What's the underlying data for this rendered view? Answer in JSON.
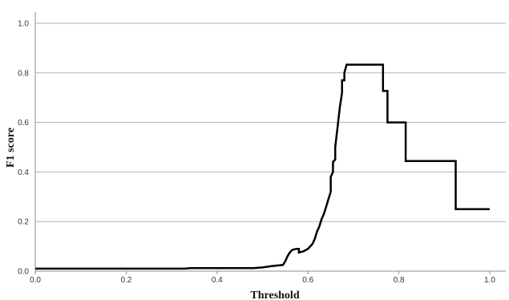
{
  "chart_data": {
    "type": "line",
    "title": "",
    "xlabel": "Threshold",
    "ylabel": "F1 score",
    "xlim": [
      0,
      1
    ],
    "ylim": [
      0,
      1
    ],
    "x_ticks": [
      "0.0",
      "0.2",
      "0.4",
      "0.6",
      "0.8",
      "1.0"
    ],
    "y_ticks": [
      "0.0",
      "0.2",
      "0.4",
      "0.6",
      "0.8",
      "1.0"
    ],
    "grid": "horizontal",
    "legend": "none",
    "line_color": "#000000",
    "series": [
      {
        "x": [
          0.0,
          0.33,
          0.34,
          0.48,
          0.5,
          0.52,
          0.545,
          0.55,
          0.555,
          0.56,
          0.565,
          0.57,
          0.575,
          0.58,
          0.58,
          0.59,
          0.6,
          0.605,
          0.61,
          0.615,
          0.62,
          0.625,
          0.63,
          0.635,
          0.64,
          0.645,
          0.65,
          0.65,
          0.655,
          0.655,
          0.66,
          0.66,
          0.665,
          0.67,
          0.675,
          0.675,
          0.68,
          0.68,
          0.685,
          0.72,
          0.765,
          0.765,
          0.775,
          0.775,
          0.795,
          0.815,
          0.815,
          0.92,
          0.925,
          0.925,
          1.0
        ],
        "y": [
          0.01,
          0.01,
          0.012,
          0.012,
          0.015,
          0.02,
          0.025,
          0.04,
          0.06,
          0.075,
          0.085,
          0.088,
          0.09,
          0.09,
          0.075,
          0.08,
          0.09,
          0.1,
          0.11,
          0.13,
          0.16,
          0.18,
          0.21,
          0.23,
          0.26,
          0.29,
          0.32,
          0.38,
          0.4,
          0.44,
          0.45,
          0.5,
          0.58,
          0.66,
          0.72,
          0.77,
          0.77,
          0.8,
          0.833,
          0.833,
          0.833,
          0.727,
          0.727,
          0.6,
          0.6,
          0.6,
          0.444,
          0.444,
          0.444,
          0.25,
          0.25
        ]
      }
    ]
  }
}
